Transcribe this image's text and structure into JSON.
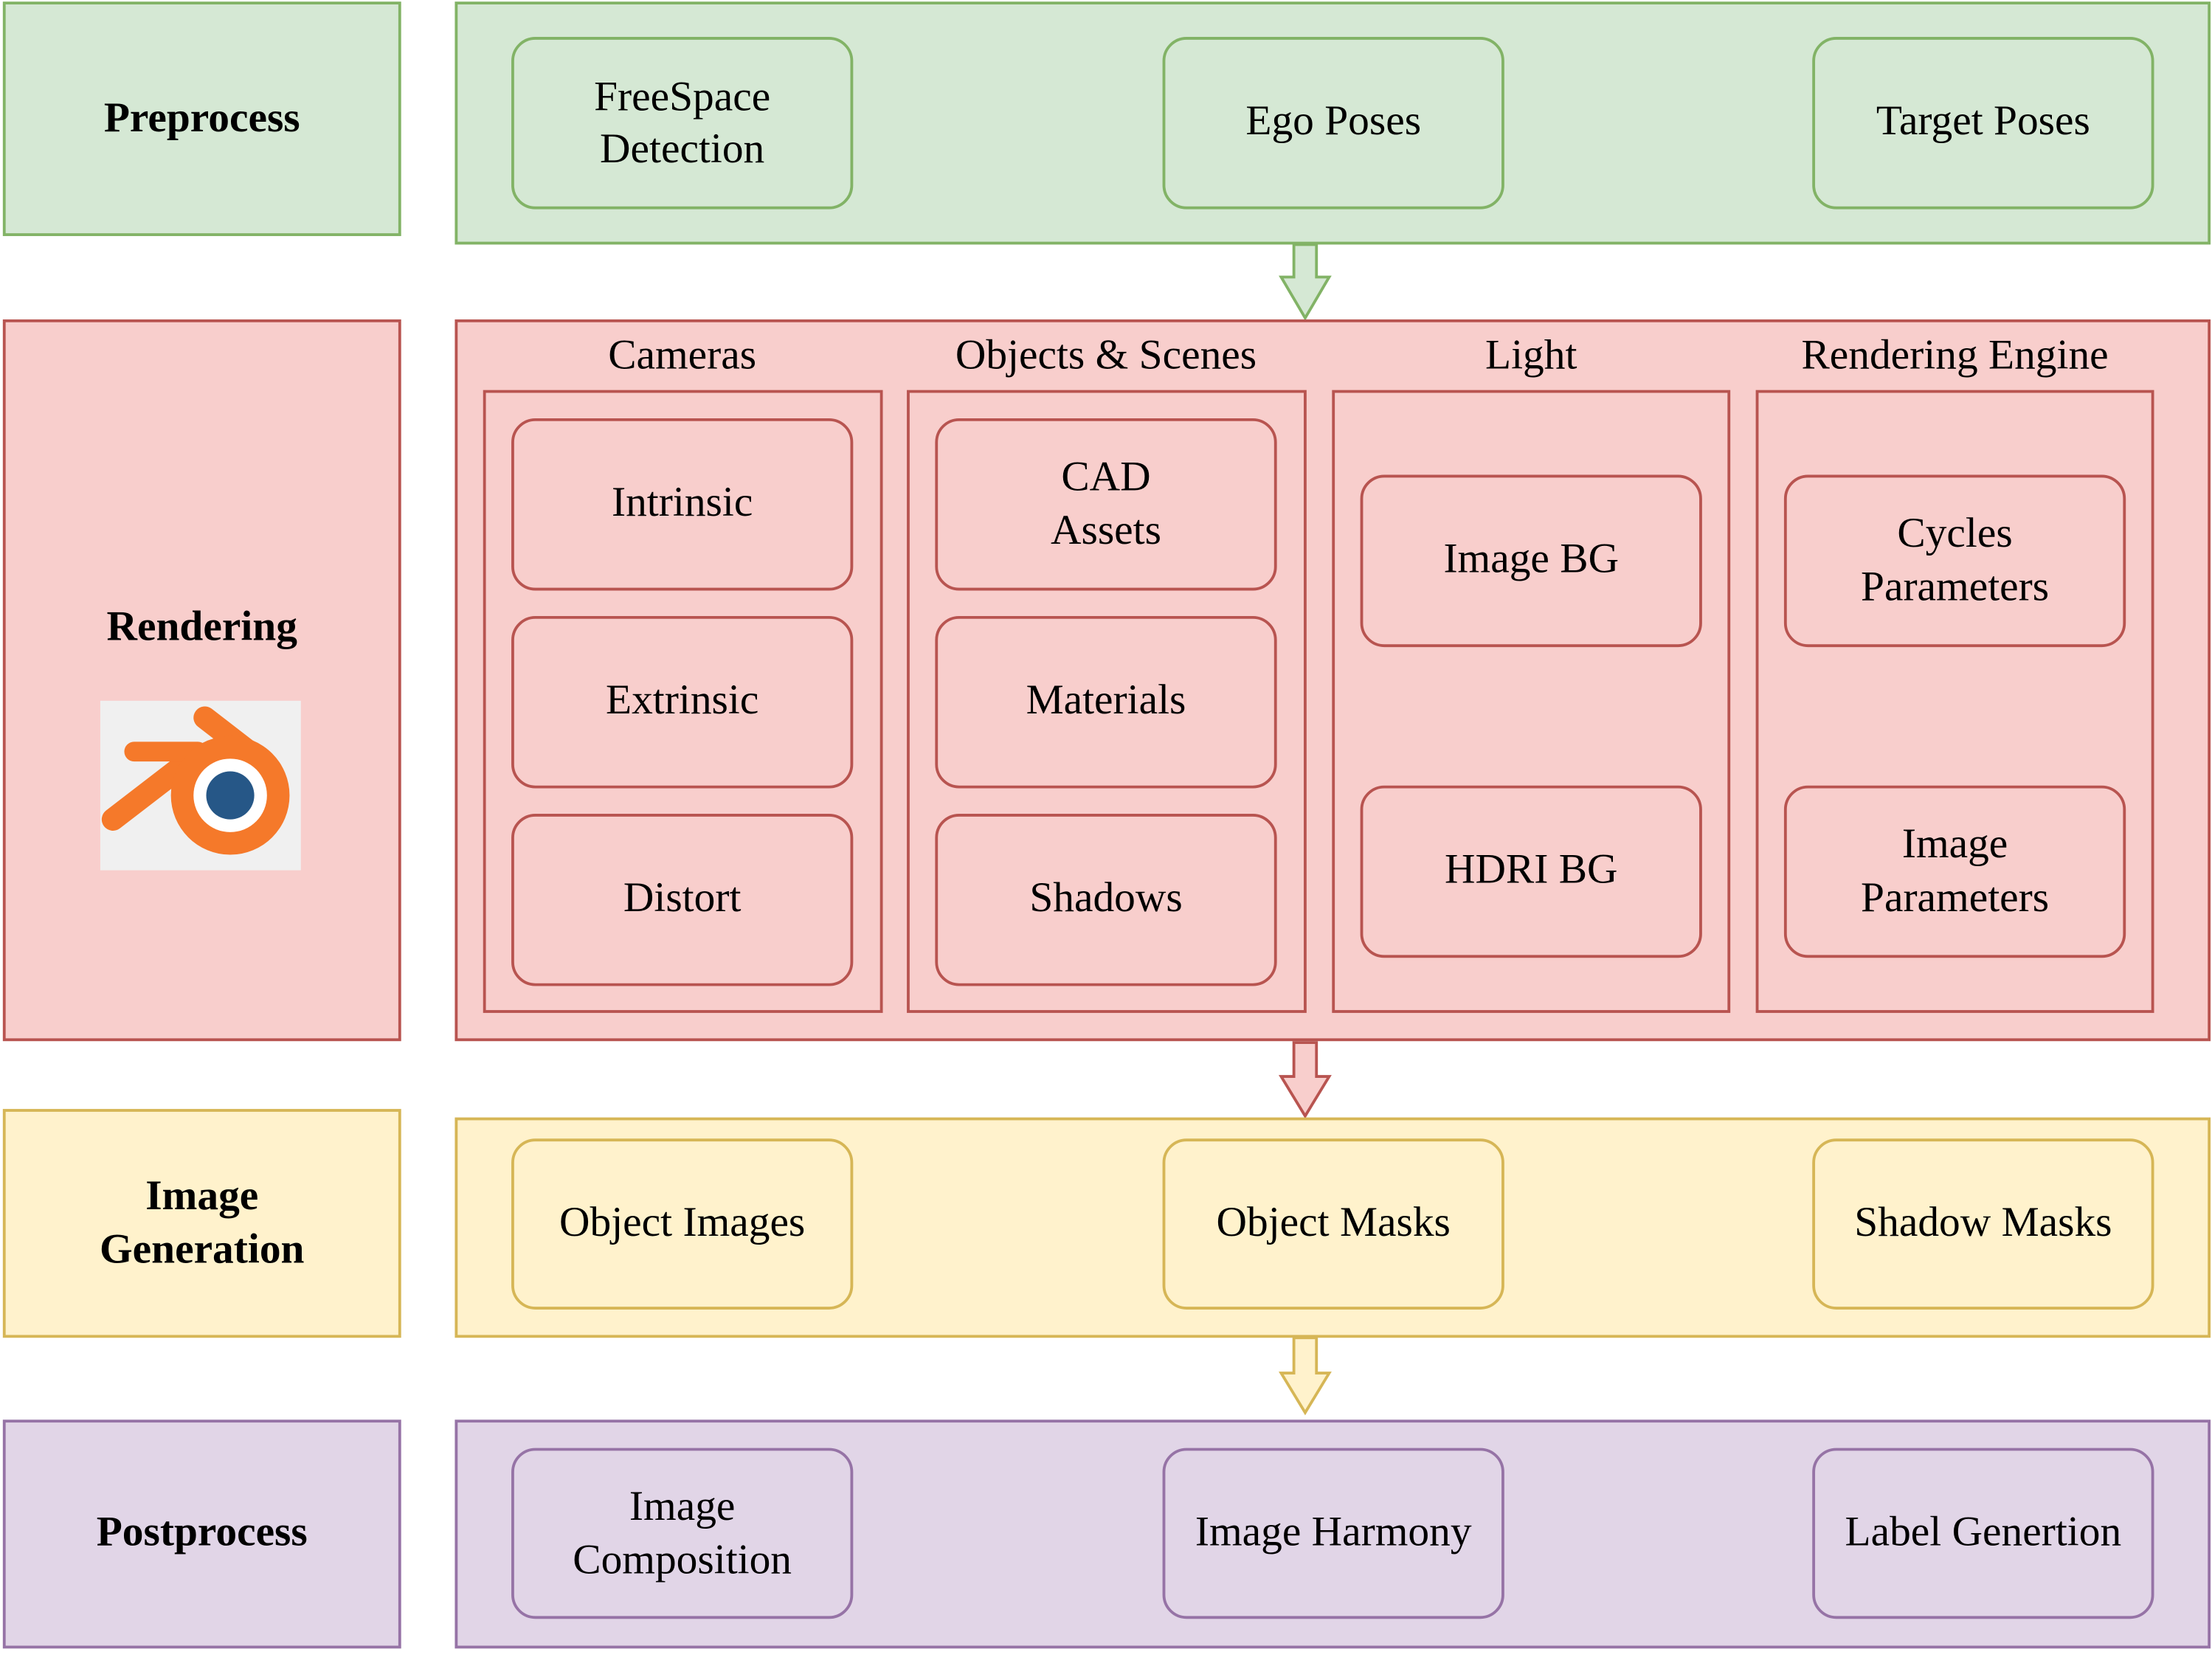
{
  "colors": {
    "green_fill": "#d5e8d4",
    "green_stroke": "#82b366",
    "red_fill": "#f8cecc",
    "red_stroke": "#b85450",
    "yellow_fill": "#fff2cc",
    "yellow_stroke": "#d6b656",
    "purple_fill": "#e1d5e7",
    "purple_stroke": "#9673a6",
    "blender_orange": "#f5792a",
    "blender_blue": "#265787"
  },
  "stages": {
    "preprocess": "Preprocess",
    "rendering": "Rendering",
    "image_generation": [
      "Image",
      "Generation"
    ],
    "postprocess": "Postprocess"
  },
  "preprocess": {
    "freespace": [
      "FreeSpace",
      "Detection"
    ],
    "ego_poses": "Ego Poses",
    "target_poses": "Target Poses"
  },
  "rendering": {
    "cameras": {
      "title": "Cameras",
      "items": [
        "Intrinsic",
        "Extrinsic",
        "Distort"
      ]
    },
    "objects": {
      "title": "Objects & Scenes",
      "cad": [
        "CAD",
        "Assets"
      ],
      "materials": "Materials",
      "shadows": "Shadows"
    },
    "light": {
      "title": "Light",
      "items": [
        "Image BG",
        "HDRI BG"
      ]
    },
    "engine": {
      "title": "Rendering Engine",
      "cycles": [
        "Cycles",
        "Parameters"
      ],
      "image_params": [
        "Image",
        "Parameters"
      ]
    },
    "logo_icon": "blender-logo-icon"
  },
  "image_generation": {
    "items": [
      "Object Images",
      "Object Masks",
      "Shadow Masks"
    ]
  },
  "postprocess": {
    "composition": [
      "Image",
      "Composition"
    ],
    "harmony": "Image Harmony",
    "label": "Label Genertion"
  }
}
